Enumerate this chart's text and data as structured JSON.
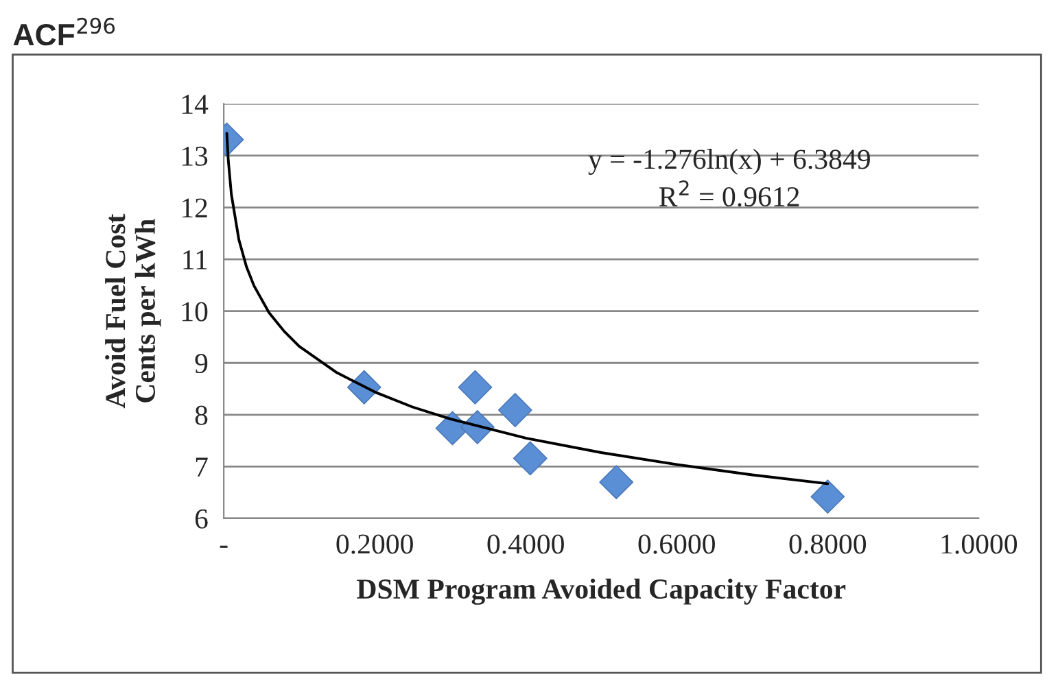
{
  "chart_data": {
    "type": "scatter",
    "title": "ACF$^{296}$",
    "xlabel": "DSM Program Avoided Capacity Factor",
    "ylabel": "Avoid Fuel Cost\nCents per kWh",
    "series": [
      {
        "color": "#5a8fd6",
        "marker": "diamond",
        "x": [
          0.004,
          0.186,
          0.303,
          0.333,
          0.336,
          0.386,
          0.406,
          0.52,
          0.8
        ],
        "values": [
          13.31,
          8.53,
          7.74,
          8.53,
          7.76,
          8.09,
          7.16,
          6.7,
          6.42
        ]
      },
      {
        "type": "line",
        "color": "#000000",
        "marker": "none",
        "line_style": "solid",
        "x": [
          0.004,
          0.006,
          0.01,
          0.02,
          0.03,
          0.04,
          0.06,
          0.08,
          0.1,
          0.15,
          0.2,
          0.25,
          0.3,
          0.4,
          0.5,
          0.6,
          0.7,
          0.8
        ],
        "values": [
          13.43,
          12.91,
          12.26,
          11.38,
          10.86,
          10.49,
          9.97,
          9.61,
          9.32,
          8.81,
          8.44,
          8.15,
          7.92,
          7.55,
          7.27,
          7.04,
          6.84,
          6.67
        ]
      }
    ],
    "annotations": [
      "y = -1.276ln(x) + 6.3849",
      "R$^{2}$ = 0.9612"
    ],
    "xlim": [
      0,
      1
    ],
    "xticks": [
      {
        "value": 0,
        "label": "-"
      },
      {
        "value": 0.2,
        "label": "0.2000"
      },
      {
        "value": 0.4,
        "label": "0.4000"
      },
      {
        "value": 0.6,
        "label": "0.6000"
      },
      {
        "value": 0.8,
        "label": "0.8000"
      },
      {
        "value": 1,
        "label": "1.0000"
      }
    ],
    "ylim": [
      6,
      14
    ],
    "yticks": [
      6,
      7,
      8,
      9,
      10,
      11,
      12,
      13,
      14
    ],
    "grid": "y",
    "legend": false
  }
}
